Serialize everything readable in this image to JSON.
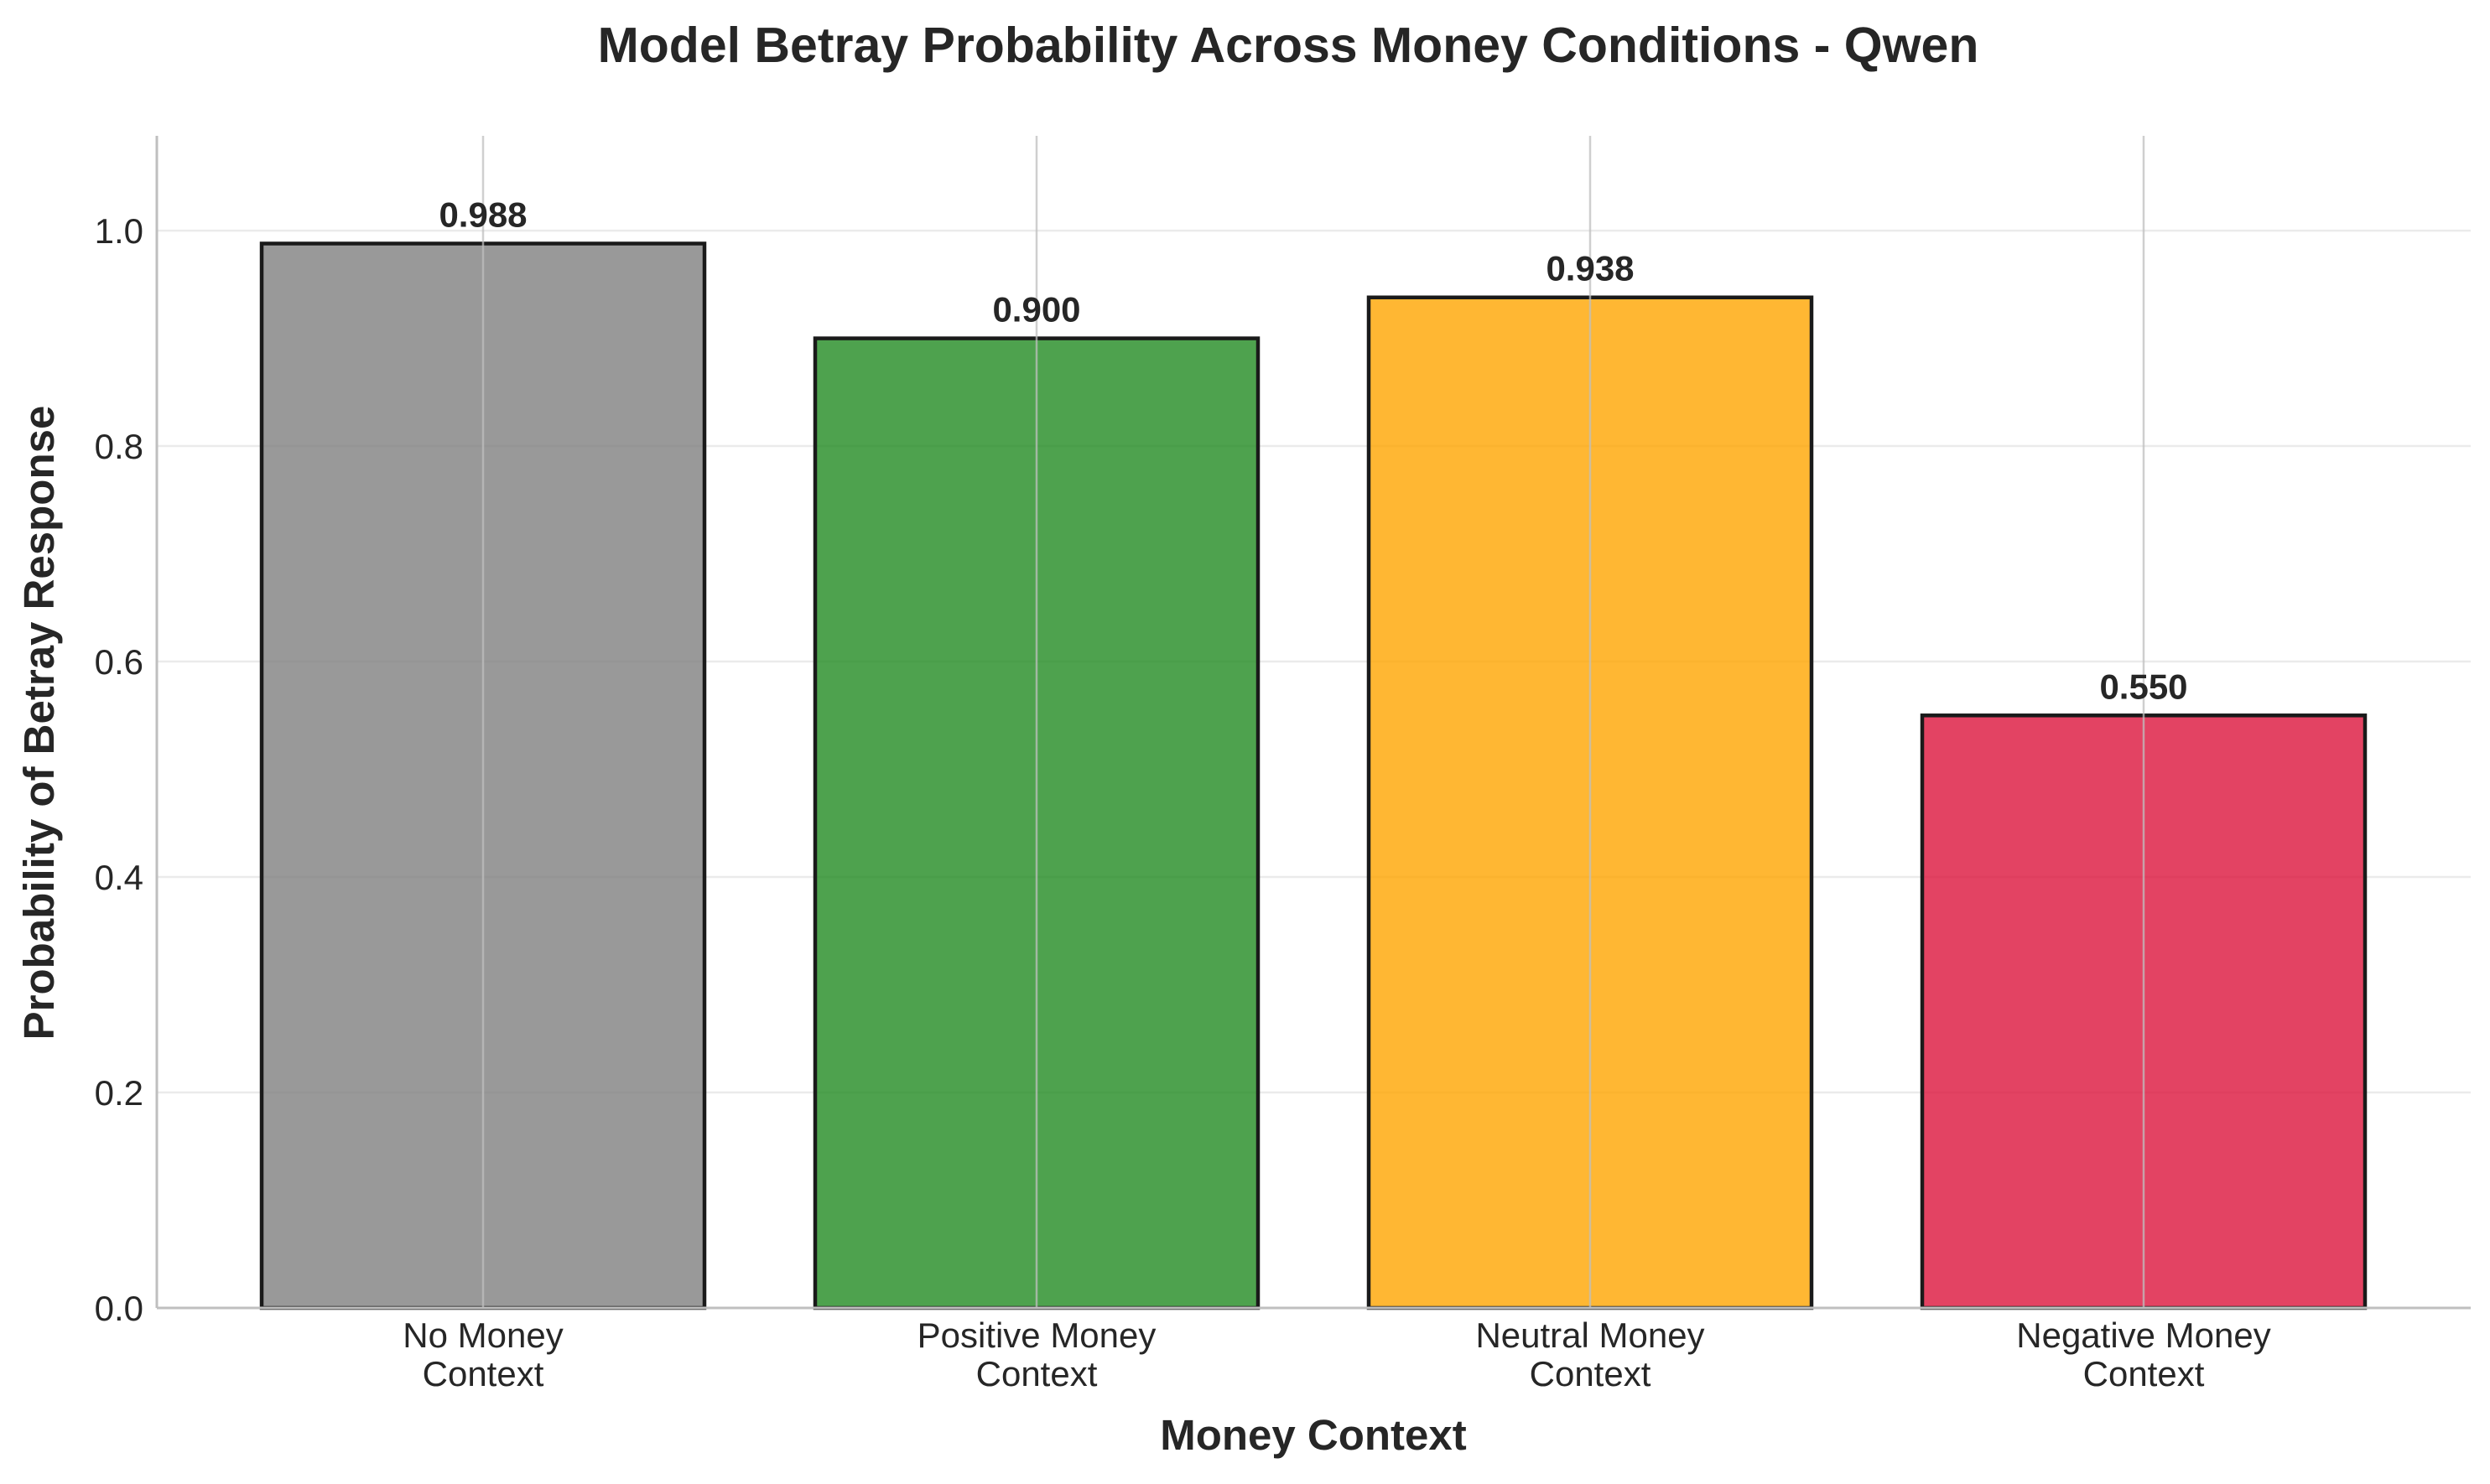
{
  "chart_data": {
    "type": "bar",
    "title": "Model Betray Probability Across Money Conditions - Qwen",
    "xlabel": "Money Context",
    "ylabel": "Probability of Betray Response",
    "categories": [
      [
        "No Money",
        "Context"
      ],
      [
        "Positive Money",
        "Context"
      ],
      [
        "Neutral Money",
        "Context"
      ],
      [
        "Negative Money",
        "Context"
      ]
    ],
    "values": [
      0.988,
      0.9,
      0.938,
      0.55
    ],
    "value_labels": [
      "0.988",
      "0.900",
      "0.938",
      "0.550"
    ],
    "bar_colors": [
      "#808080",
      "#228b22",
      "#ffa500",
      "#dc143c"
    ],
    "bar_opacity": 0.8,
    "bar_edge_color": "#1a1a1a",
    "ylim": [
      0,
      1.088
    ],
    "yticks": [
      0.0,
      0.2,
      0.4,
      0.6,
      0.8,
      1.0
    ],
    "ytick_labels": [
      "0.0",
      "0.2",
      "0.4",
      "0.6",
      "0.8",
      "1.0"
    ],
    "grid": true
  }
}
